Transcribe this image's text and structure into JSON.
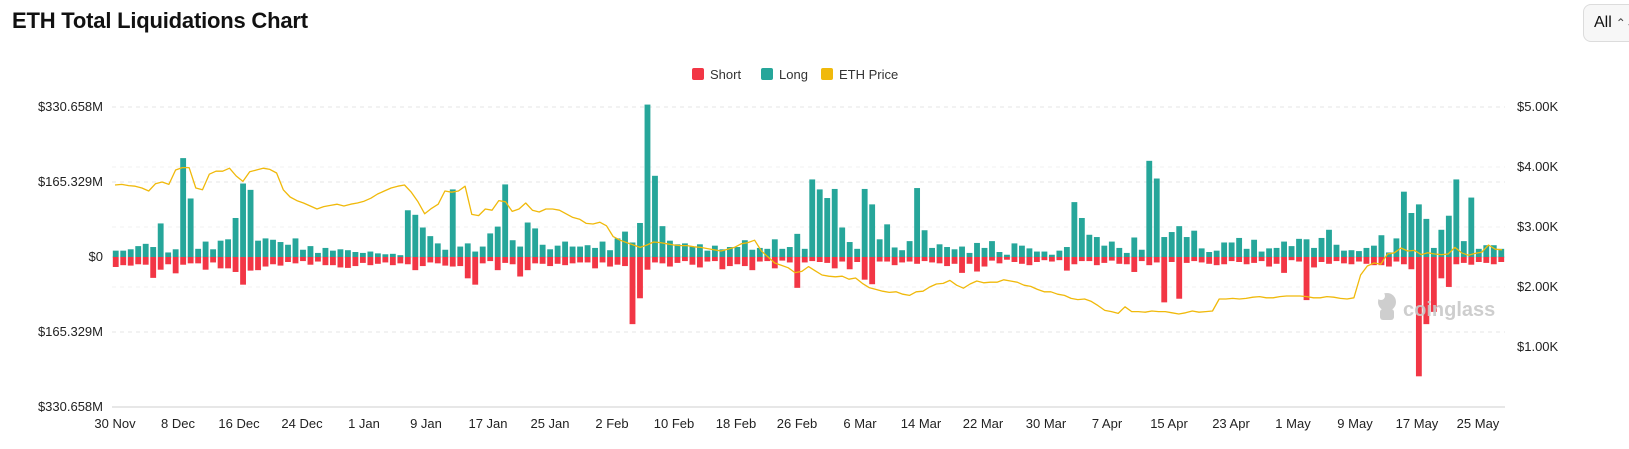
{
  "header": {
    "title": "ETH Total Liquidations Chart",
    "range_value": "All",
    "range_icon": "updown-chevron-icon"
  },
  "watermark": {
    "text": "coinglass",
    "icon": "coinglass-logo-icon"
  },
  "colors": {
    "short": "#f23645",
    "long": "#26a69a",
    "price": "#f0b90b",
    "grid": "#e6e6e6"
  },
  "chart_data": {
    "type": "bar",
    "legend": [
      {
        "name": "Short",
        "color": "#f23645"
      },
      {
        "name": "Long",
        "color": "#26a69a"
      },
      {
        "name": "ETH Price",
        "color": "#f0b90b"
      }
    ],
    "legend_position": "top-center",
    "y_left": {
      "ticks": [
        "$330.658M",
        "$165.329M",
        "$0",
        "$165.329M",
        "$330.658M"
      ],
      "values": [
        330.658,
        165.329,
        0,
        -165.329,
        -330.658
      ],
      "unit": "M USD"
    },
    "y_right": {
      "ticks": [
        "$5.00K",
        "$4.00K",
        "$3.00K",
        "$2.00K",
        "$1.00K"
      ],
      "values": [
        5000,
        4000,
        3000,
        2000,
        1000
      ]
    },
    "x_ticks": [
      "30 Nov",
      "8 Dec",
      "16 Dec",
      "24 Dec",
      "1 Jan",
      "9 Jan",
      "17 Jan",
      "25 Jan",
      "2 Feb",
      "10 Feb",
      "18 Feb",
      "26 Feb",
      "6 Mar",
      "14 Mar",
      "22 Mar",
      "30 Mar",
      "7 Apr",
      "15 Apr",
      "23 Apr",
      "1 May",
      "9 May",
      "17 May",
      "25 May"
    ],
    "grid": true,
    "series": [
      {
        "name": "Long",
        "values": [
          14,
          14,
          17,
          24,
          29,
          22,
          74,
          10,
          17,
          218,
          129,
          18,
          34,
          17,
          36,
          39,
          86,
          162,
          148,
          36,
          41,
          38,
          33,
          27,
          41,
          16,
          24,
          9,
          20,
          14,
          17,
          15,
          11,
          9,
          12,
          8,
          6,
          7,
          4,
          103,
          93,
          65,
          46,
          30,
          16,
          149,
          23,
          30,
          12,
          23,
          52,
          67,
          160,
          37,
          23,
          76,
          63,
          27,
          17,
          25,
          34,
          23,
          23,
          26,
          20,
          34,
          15,
          41,
          56,
          32,
          75,
          336,
          179,
          68,
          36,
          28,
          30,
          23,
          28,
          14,
          25,
          17,
          22,
          22,
          37,
          16,
          20,
          18,
          39,
          18,
          22,
          51,
          18,
          171,
          149,
          130,
          150,
          65,
          33,
          18,
          150,
          116,
          39,
          72,
          21,
          15,
          35,
          152,
          59,
          20,
          28,
          22,
          17,
          23,
          9,
          31,
          20,
          35,
          11,
          5,
          30,
          25,
          19,
          12,
          12,
          5,
          14,
          22,
          121,
          86,
          49,
          44,
          25,
          34,
          20,
          9,
          43,
          16,
          212,
          173,
          44,
          55,
          68,
          44,
          58,
          19,
          11,
          14,
          32,
          32,
          42,
          18,
          38,
          12,
          19,
          20,
          34,
          24,
          40,
          39,
          20,
          42,
          60,
          27,
          14,
          15,
          13,
          20,
          25,
          48,
          10,
          41,
          144,
          97,
          116,
          84,
          20,
          60,
          91,
          171,
          35,
          131,
          18,
          26,
          26,
          18
        ],
        "note": "daily long liquidations, $M (index 0 = 30 Nov)"
      },
      {
        "name": "Short",
        "values": [
          22,
          18,
          19,
          16,
          17,
          46,
          28,
          16,
          36,
          17,
          14,
          14,
          28,
          12,
          25,
          25,
          33,
          61,
          30,
          29,
          21,
          16,
          19,
          11,
          14,
          9,
          17,
          10,
          18,
          18,
          23,
          24,
          20,
          13,
          18,
          15,
          12,
          18,
          14,
          16,
          29,
          20,
          12,
          14,
          19,
          21,
          20,
          47,
          61,
          14,
          9,
          29,
          13,
          16,
          43,
          29,
          14,
          15,
          20,
          15,
          18,
          14,
          12,
          12,
          25,
          12,
          21,
          17,
          20,
          148,
          91,
          28,
          12,
          14,
          21,
          13,
          9,
          17,
          23,
          10,
          9,
          27,
          20,
          16,
          20,
          29,
          10,
          9,
          25,
          8,
          12,
          68,
          12,
          9,
          11,
          13,
          25,
          10,
          27,
          11,
          50,
          60,
          10,
          10,
          18,
          12,
          10,
          15,
          9,
          12,
          14,
          20,
          15,
          35,
          15,
          32,
          21,
          8,
          14,
          6,
          11,
          15,
          18,
          11,
          7,
          10,
          7,
          30,
          16,
          9,
          9,
          18,
          13,
          8,
          15,
          16,
          33,
          9,
          18,
          12,
          100,
          11,
          92,
          13,
          9,
          12,
          15,
          18,
          16,
          9,
          11,
          16,
          13,
          9,
          21,
          15,
          35,
          7,
          10,
          95,
          23,
          11,
          15,
          9,
          14,
          16,
          10,
          15,
          18,
          18,
          21,
          10,
          16,
          27,
          263,
          148,
          121,
          47,
          66,
          16,
          13,
          17,
          11,
          13,
          16,
          11,
          11,
          59
        ],
        "note": "daily short liquidations, $M (plotted below zero)"
      },
      {
        "name": "ETH Price",
        "values": [
          3700,
          3710,
          3690,
          3680,
          3650,
          3600,
          3720,
          3750,
          3710,
          3950,
          3990,
          3990,
          3650,
          3620,
          3880,
          3930,
          3930,
          3980,
          3850,
          3760,
          3920,
          3950,
          3980,
          3960,
          3900,
          3620,
          3500,
          3440,
          3400,
          3350,
          3300,
          3340,
          3360,
          3380,
          3350,
          3380,
          3400,
          3430,
          3480,
          3550,
          3600,
          3650,
          3680,
          3700,
          3580,
          3420,
          3220,
          3310,
          3380,
          3600,
          3580,
          3600,
          3680,
          3210,
          3190,
          3300,
          3280,
          3440,
          3420,
          3260,
          3300,
          3400,
          3280,
          3250,
          3300,
          3300,
          3280,
          3220,
          3160,
          3130,
          3060,
          3050,
          3080,
          3020,
          2840,
          2780,
          2740,
          2700,
          2660,
          2700,
          2750,
          2740,
          2720,
          2700,
          2690,
          2690,
          2670,
          2660,
          2640,
          2620,
          2600,
          2630,
          2660,
          2720,
          2740,
          2780,
          2600,
          2500,
          2400,
          2360,
          2320,
          2240,
          2260,
          2340,
          2270,
          2200,
          2180,
          2170,
          2180,
          2130,
          2150,
          2060,
          1990,
          1960,
          1930,
          1910,
          1920,
          1880,
          1860,
          1920,
          1930,
          2000,
          2050,
          2060,
          2110,
          2030,
          1980,
          2050,
          2100,
          2070,
          2080,
          2080,
          2120,
          2100,
          2080,
          2030,
          2010,
          1960,
          1920,
          1920,
          1880,
          1860,
          1810,
          1790,
          1800,
          1760,
          1690,
          1610,
          1590,
          1560,
          1670,
          1590,
          1590,
          1580,
          1600,
          1590,
          1590,
          1570,
          1550,
          1570,
          1600,
          1580,
          1590,
          1600,
          1800,
          1800,
          1810,
          1800,
          1810,
          1830,
          1840,
          1820,
          1820,
          1840,
          1850,
          1850,
          1850,
          1840,
          1820,
          1820,
          1840,
          1830,
          1810,
          1800,
          1820,
          2200,
          2350,
          2400,
          2380,
          2550,
          2570,
          2650,
          2600,
          2610,
          2540,
          2570,
          2550,
          2540,
          2550,
          2660,
          2570,
          2530,
          2560,
          2580,
          2700,
          2630,
          2620
        ],
        "unit": "USD"
      }
    ],
    "title": "ETH Total Liquidations Chart"
  }
}
